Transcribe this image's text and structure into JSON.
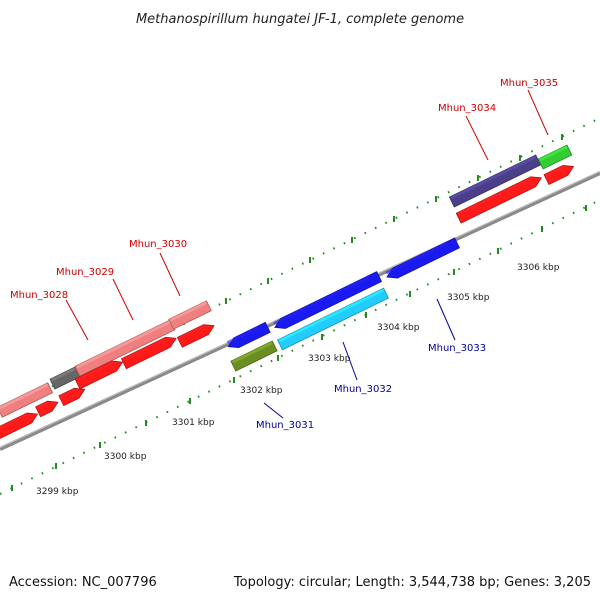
{
  "title": "Methanospirillum hungatei JF-1, complete genome",
  "footer": {
    "accession": "Accession: NC_007796",
    "summary": "Topology: circular; Length: 3,544,738 bp; Genes: 3,205"
  },
  "colors": {
    "label_top": "#cc0000",
    "label_bottom": "#000099",
    "tick": "#228b22",
    "backbone": "#888888",
    "pink": "#f08080",
    "red": "#ff1a1a",
    "gray": "#666666",
    "blue": "#1a1aee",
    "cyan": "#22ccff",
    "olive": "#6b8e23",
    "navy": "#4b3f8a",
    "green": "#33cc33"
  },
  "scale": [
    {
      "label": "3299 kbp"
    },
    {
      "label": "3300 kbp"
    },
    {
      "label": "3301 kbp"
    },
    {
      "label": "3302 kbp"
    },
    {
      "label": "3303 kbp"
    },
    {
      "label": "3304 kbp"
    },
    {
      "label": "3305 kbp"
    },
    {
      "label": "3306 kbp"
    }
  ],
  "genes": [
    {
      "id": "Mhun_3028",
      "label": "Mhun_3028"
    },
    {
      "id": "Mhun_3029",
      "label": "Mhun_3029"
    },
    {
      "id": "Mhun_3030",
      "label": "Mhun_3030"
    },
    {
      "id": "Mhun_3031",
      "label": "Mhun_3031"
    },
    {
      "id": "Mhun_3032",
      "label": "Mhun_3032"
    },
    {
      "id": "Mhun_3033",
      "label": "Mhun_3033"
    },
    {
      "id": "Mhun_3034",
      "label": "Mhun_3034"
    },
    {
      "id": "Mhun_3035",
      "label": "Mhun_3035"
    }
  ]
}
